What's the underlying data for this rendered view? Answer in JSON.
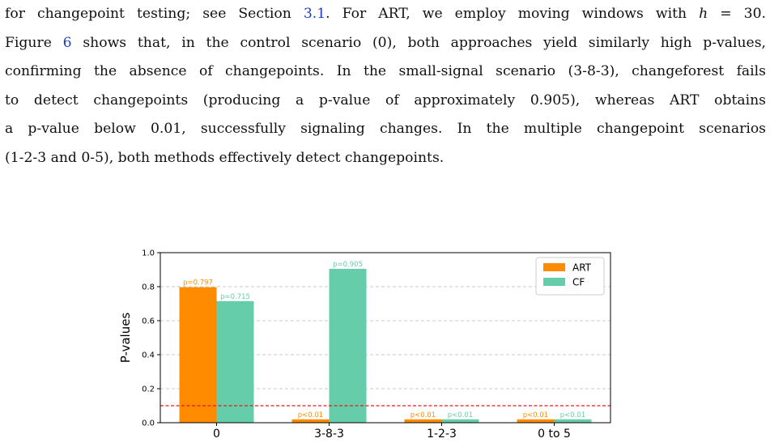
{
  "paragraph": {
    "l1_a": "for changepoint testing; see Section ",
    "l1_ref": "3.1",
    "l1_b": ". For ART, we employ moving windows with ",
    "l1_math": "h",
    "l1_c": " = 30.",
    "l2_a": "Figure ",
    "l2_ref": "6",
    "l2_b": " shows that, in the control scenario (0), both approaches yield similarly high p-values,",
    "l3": "confirming the absence of changepoints. In the small-signal scenario (3-8-3), changeforest fails",
    "l4": "to detect changepoints (producing a p-value of approximately 0.905), whereas ART obtains",
    "l5": "a p-value below 0.01, successfully signaling changes. In the multiple changepoint scenarios",
    "l6": "(1-2-3 and 0-5), both methods effectively detect changepoints."
  },
  "chart_data": {
    "type": "bar",
    "categories": [
      "0",
      "3-8-3",
      "1-2-3",
      "0 to 5"
    ],
    "series": [
      {
        "name": "ART",
        "color": "#ff8c00",
        "values": [
          0.797,
          0.02,
          0.02,
          0.02
        ],
        "labels": [
          "p=0.797",
          "p<0.01",
          "p<0.01",
          "p<0.01"
        ]
      },
      {
        "name": "CF",
        "color": "#66cdaa",
        "values": [
          0.715,
          0.905,
          0.02,
          0.02
        ],
        "labels": [
          "p=0.715",
          "p=0.905",
          "p<0.01",
          "p<0.01"
        ]
      }
    ],
    "ylabel": "P-values",
    "ylim": [
      0,
      1.0
    ],
    "yticks": [
      "0.0",
      "0.2",
      "0.4",
      "0.6",
      "0.8",
      "1.0"
    ],
    "threshold": 0.1,
    "threshold_color": "#e31a1c",
    "grid": "horizontal dashed",
    "legend_position": "top-right"
  }
}
